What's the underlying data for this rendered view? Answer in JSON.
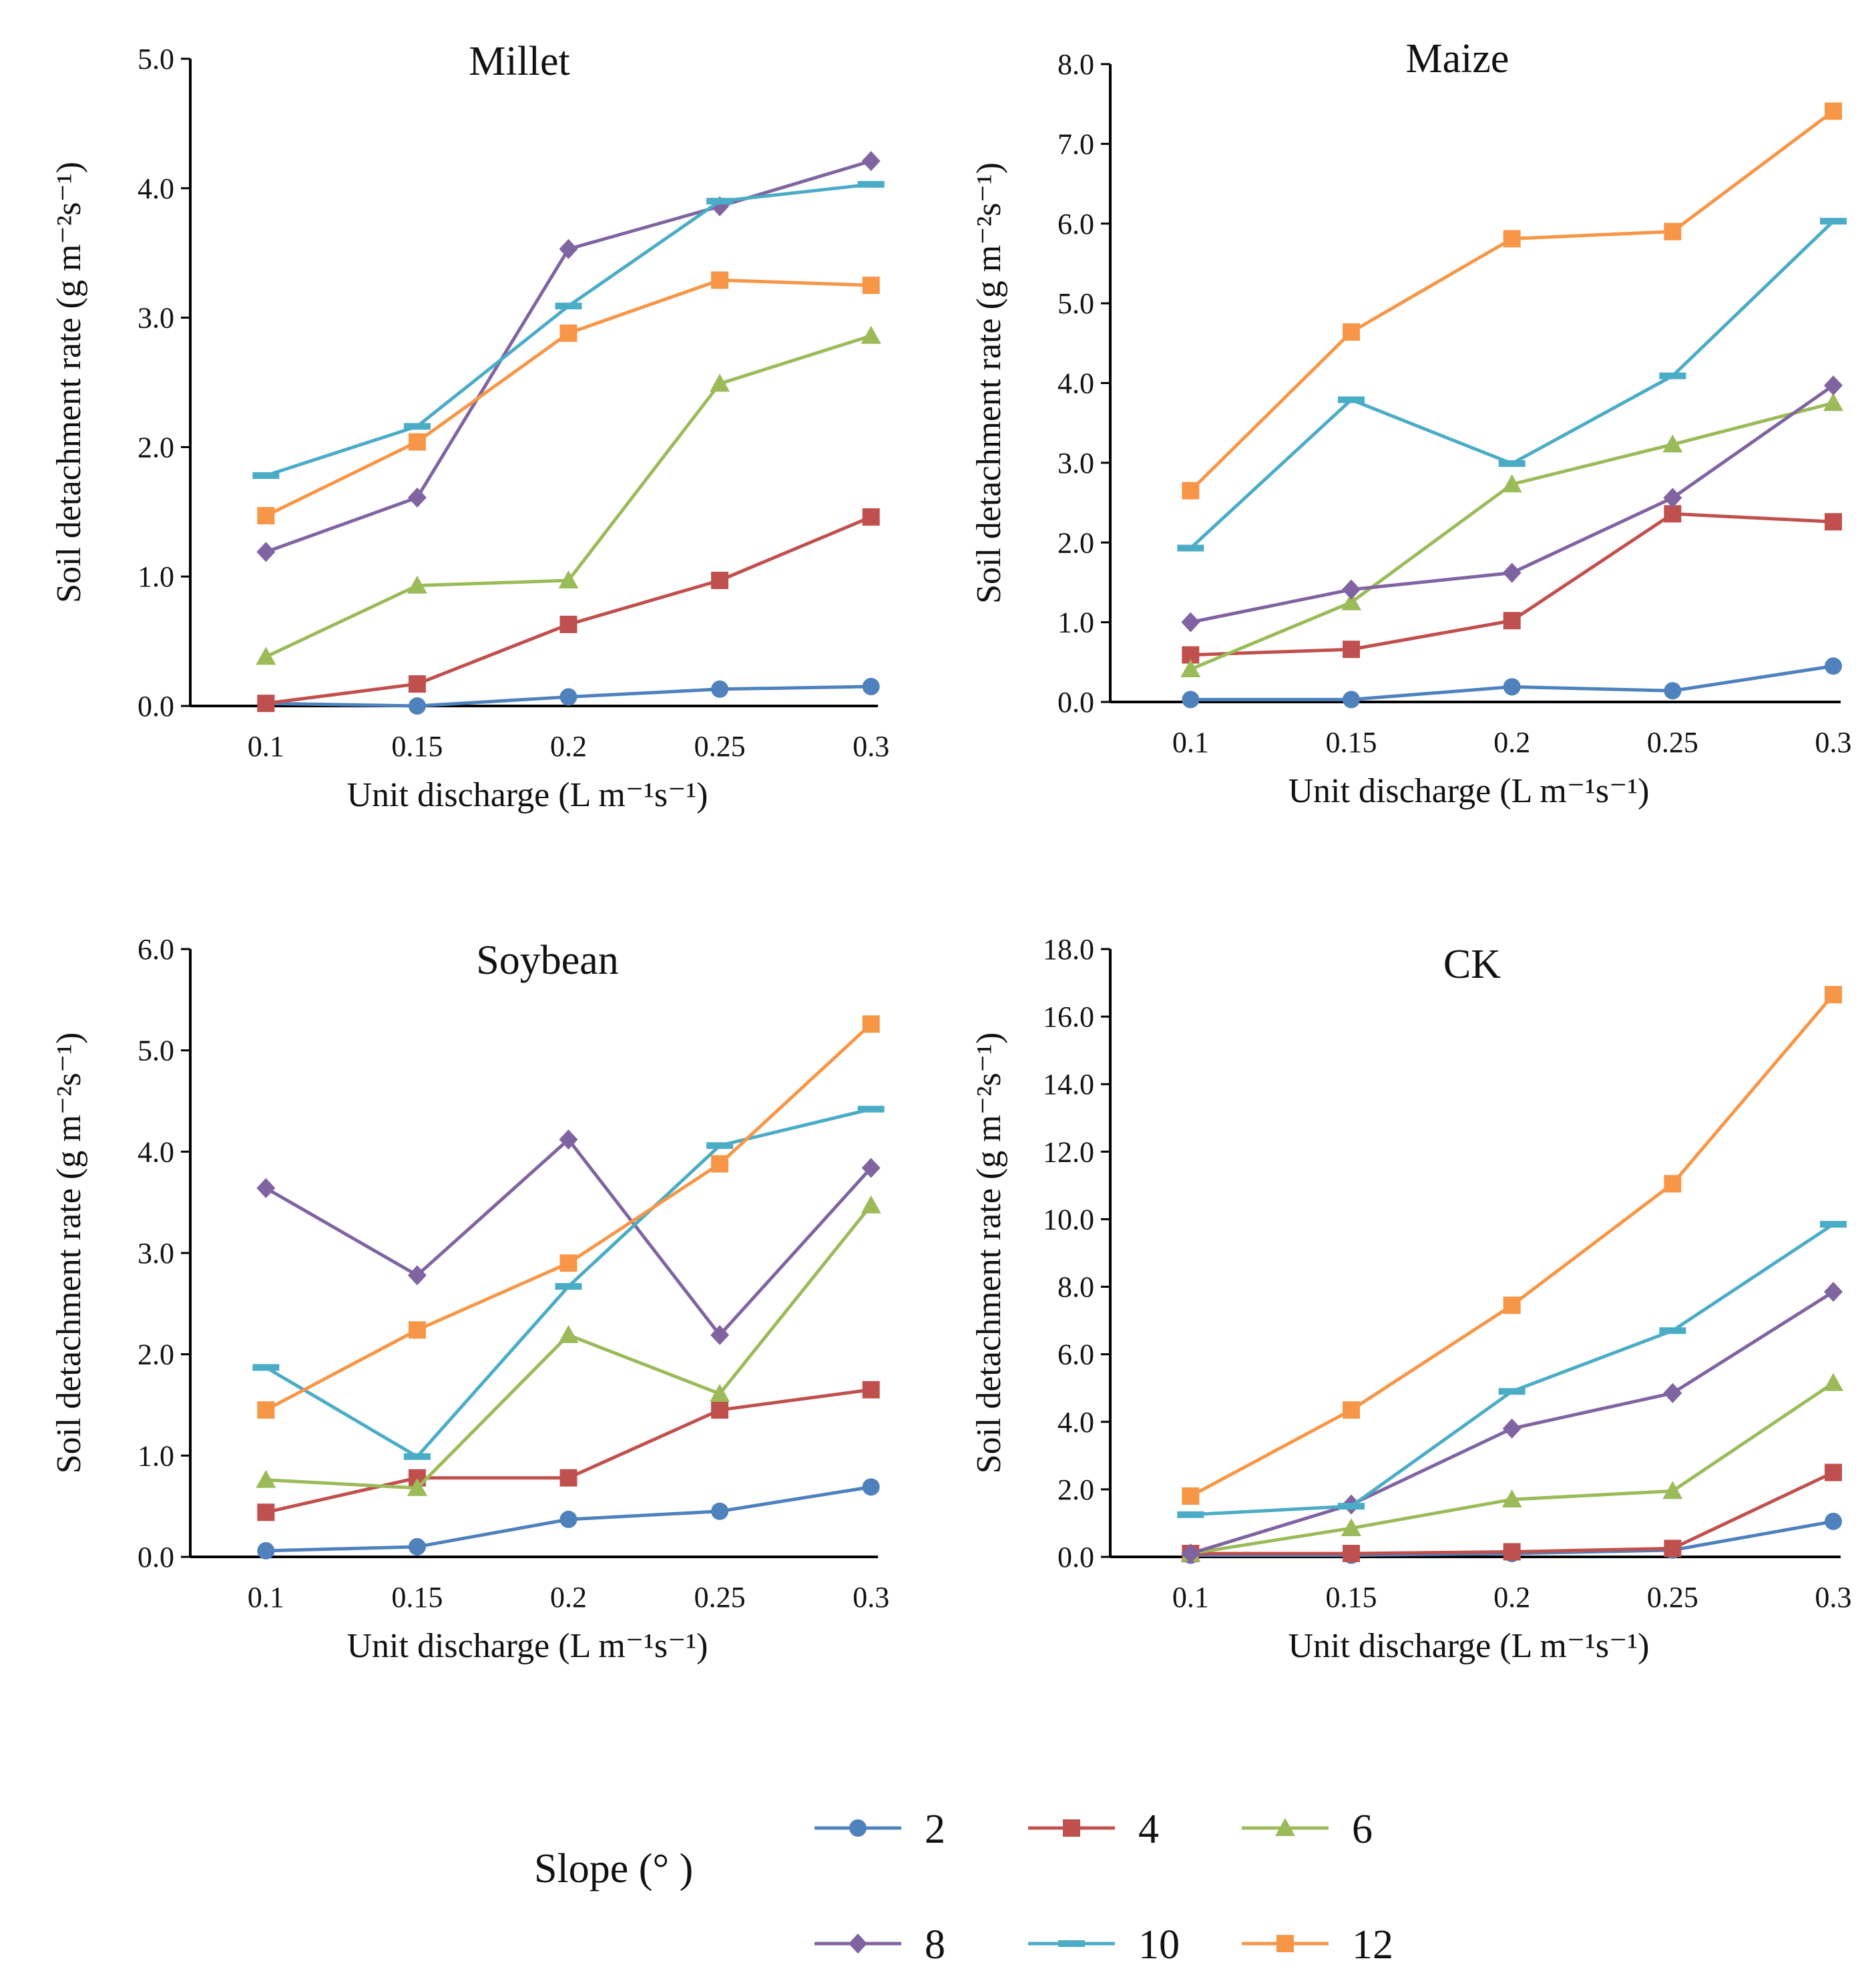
{
  "figure": {
    "legend": {
      "title": "Slope (°  )"
    }
  },
  "series_styles": [
    {
      "name": "2",
      "color": "#4f81bd",
      "marker": "circle"
    },
    {
      "name": "4",
      "color": "#c0504d",
      "marker": "square"
    },
    {
      "name": "6",
      "color": "#9bbb59",
      "marker": "triangle"
    },
    {
      "name": "8",
      "color": "#8064a2",
      "marker": "diamond"
    },
    {
      "name": "10",
      "color": "#4bacc6",
      "marker": "dash"
    },
    {
      "name": "12",
      "color": "#f79646",
      "marker": "square"
    }
  ],
  "chart_data": [
    {
      "type": "line",
      "title": "Millet",
      "xlabel": "Unit discharge (L m⁻¹s⁻¹)",
      "ylabel": "Soil detachment rate (g m⁻²s⁻¹)",
      "categories": [
        "0.1",
        "0.15",
        "0.2",
        "0.25",
        "0.3"
      ],
      "ylim": [
        0,
        5.0
      ],
      "yticks": [
        "0.0",
        "1.0",
        "2.0",
        "3.0",
        "4.0",
        "5.0"
      ],
      "series": [
        {
          "name": "2",
          "values": [
            0.02,
            0.0,
            0.07,
            0.13,
            0.15
          ]
        },
        {
          "name": "4",
          "values": [
            0.02,
            0.17,
            0.63,
            0.97,
            1.46
          ]
        },
        {
          "name": "6",
          "values": [
            0.38,
            0.93,
            0.97,
            2.49,
            2.86
          ]
        },
        {
          "name": "8",
          "values": [
            1.19,
            1.61,
            3.53,
            3.86,
            4.21
          ]
        },
        {
          "name": "10",
          "values": [
            1.78,
            2.16,
            3.09,
            3.9,
            4.03
          ]
        },
        {
          "name": "12",
          "values": [
            1.47,
            2.04,
            2.88,
            3.29,
            3.25
          ]
        }
      ]
    },
    {
      "type": "line",
      "title": "Maize",
      "xlabel": "Unit discharge (L m⁻¹s⁻¹)",
      "ylabel": "Soil detachment rate (g m⁻²s⁻¹)",
      "categories": [
        "0.1",
        "0.15",
        "0.2",
        "0.25",
        "0.3"
      ],
      "ylim": [
        0,
        8.0
      ],
      "yticks": [
        "0.0",
        "1.0",
        "2.0",
        "3.0",
        "4.0",
        "5.0",
        "6.0",
        "7.0",
        "8.0"
      ],
      "series": [
        {
          "name": "2",
          "values": [
            0.03,
            0.03,
            0.19,
            0.14,
            0.45
          ]
        },
        {
          "name": "4",
          "values": [
            0.59,
            0.66,
            1.02,
            2.36,
            2.26
          ]
        },
        {
          "name": "6",
          "values": [
            0.41,
            1.25,
            2.73,
            3.23,
            3.75
          ]
        },
        {
          "name": "8",
          "values": [
            1.0,
            1.41,
            1.62,
            2.56,
            3.97
          ]
        },
        {
          "name": "10",
          "values": [
            1.93,
            3.79,
            2.99,
            4.09,
            6.03
          ]
        },
        {
          "name": "12",
          "values": [
            2.65,
            4.64,
            5.81,
            5.9,
            7.41
          ]
        }
      ]
    },
    {
      "type": "line",
      "title": "Soybean",
      "xlabel": "Unit discharge (L m⁻¹s⁻¹)",
      "ylabel": "Soil detachment rate (g m⁻²s⁻¹)",
      "categories": [
        "0.1",
        "0.15",
        "0.2",
        "0.25",
        "0.3"
      ],
      "ylim": [
        0,
        6.0
      ],
      "yticks": [
        "0.0",
        "1.0",
        "2.0",
        "3.0",
        "4.0",
        "5.0",
        "6.0"
      ],
      "series": [
        {
          "name": "2",
          "values": [
            0.06,
            0.1,
            0.37,
            0.45,
            0.69
          ]
        },
        {
          "name": "4",
          "values": [
            0.44,
            0.78,
            0.78,
            1.45,
            1.65
          ]
        },
        {
          "name": "6",
          "values": [
            0.76,
            0.68,
            2.19,
            1.61,
            3.47
          ]
        },
        {
          "name": "8",
          "values": [
            3.64,
            2.78,
            4.12,
            2.19,
            3.84
          ]
        },
        {
          "name": "10",
          "values": [
            1.87,
            0.99,
            2.67,
            4.06,
            4.42
          ]
        },
        {
          "name": "12",
          "values": [
            1.45,
            2.24,
            2.9,
            3.88,
            5.26
          ]
        }
      ]
    },
    {
      "type": "line",
      "title": "CK",
      "xlabel": "Unit discharge (L m⁻¹s⁻¹)",
      "ylabel": "Soil detachment rate (g m⁻²s⁻¹)",
      "categories": [
        "0.1",
        "0.15",
        "0.2",
        "0.25",
        "0.3"
      ],
      "ylim": [
        0,
        18.0
      ],
      "yticks": [
        "0.0",
        "2.0",
        "4.0",
        "6.0",
        "8.0",
        "10.0",
        "12.0",
        "14.0",
        "16.0",
        "18.0"
      ],
      "series": [
        {
          "name": "2",
          "values": [
            0.05,
            0.05,
            0.1,
            0.2,
            1.05
          ]
        },
        {
          "name": "4",
          "values": [
            0.1,
            0.1,
            0.15,
            0.25,
            2.5
          ]
        },
        {
          "name": "6",
          "values": [
            0.1,
            0.85,
            1.7,
            1.95,
            5.15
          ]
        },
        {
          "name": "8",
          "values": [
            0.1,
            1.55,
            3.8,
            4.85,
            7.85
          ]
        },
        {
          "name": "10",
          "values": [
            1.25,
            1.5,
            4.9,
            6.7,
            9.85
          ]
        },
        {
          "name": "12",
          "values": [
            1.8,
            4.35,
            7.45,
            11.05,
            16.65
          ]
        }
      ]
    }
  ]
}
